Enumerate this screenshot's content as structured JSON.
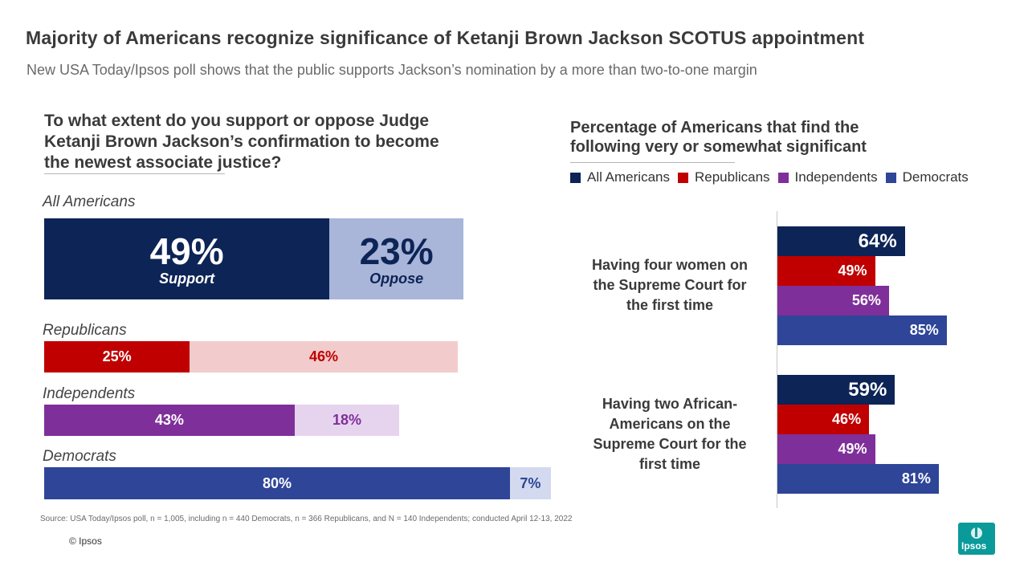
{
  "title": "Majority of Americans recognize significance of Ketanji Brown Jackson SCOTUS appointment",
  "subtitle": "New USA Today/Ipsos poll shows that the public supports Jackson’s nomination by a more than two-to-one margin",
  "colors": {
    "all_americans": "#0d2456",
    "all_oppose": "#a9b5d9",
    "republicans": "#c00000",
    "republicans_oppose": "#f2cccc",
    "independents": "#7f2f9a",
    "independents_oppose": "#e6d4ee",
    "democrats": "#2e4598",
    "democrats_oppose": "#d3d9ee"
  },
  "chart_data": [
    {
      "type": "bar",
      "orientation": "horizontal-stacked",
      "title": "To what extent do you support or oppose Judge Ketanji Brown Jackson’s confirmation to become the newest associate justice?",
      "title_lines": [
        "To what extent do you support or oppose Judge",
        "Ketanji Brown Jackson’s confirmation to become",
        "the newest associate justice?"
      ],
      "categories": [
        "All Americans",
        "Republicans",
        "Independents",
        "Democrats"
      ],
      "series": [
        {
          "name": "Support",
          "values": [
            49,
            25,
            43,
            80
          ],
          "labels": [
            "49%",
            "25%",
            "43%",
            "80%"
          ]
        },
        {
          "name": "Oppose",
          "values": [
            23,
            46,
            18,
            7
          ],
          "labels": [
            "23%",
            "46%",
            "18%",
            "7%"
          ]
        }
      ]
    },
    {
      "type": "bar",
      "orientation": "horizontal",
      "title": "Percentage of Americans that find the following very or somewhat significant",
      "title_lines": [
        "Percentage of Americans that find the",
        "following very or somewhat significant"
      ],
      "legend": [
        "All Americans",
        "Republicans",
        "Independents",
        "Democrats"
      ],
      "categories": [
        "Having four women on the Supreme Court for the first time",
        "Having two African-Americans on the Supreme Court for the first time"
      ],
      "category_lines": [
        [
          "Having four women on",
          "the Supreme Court for",
          "the first time"
        ],
        [
          "Having two African-",
          "Americans on the",
          "Supreme Court for the",
          "first time"
        ]
      ],
      "series": [
        {
          "name": "All Americans",
          "values": [
            64,
            59
          ],
          "labels": [
            "64%",
            "59%"
          ]
        },
        {
          "name": "Republicans",
          "values": [
            49,
            46
          ],
          "labels": [
            "49%",
            "46%"
          ]
        },
        {
          "name": "Independents",
          "values": [
            56,
            49
          ],
          "labels": [
            "56%",
            "49%"
          ]
        },
        {
          "name": "Democrats",
          "values": [
            85,
            81
          ],
          "labels": [
            "85%",
            "81%"
          ]
        }
      ]
    }
  ],
  "source": "Source: USA Today/Ipsos poll,  n = 1,005, including n = 440 Democrats, n = 366 Republicans, and N = 140 Independents;  conducted April 12-13, 2022",
  "copyright": "© Ipsos",
  "logo_text": "Ipsos"
}
